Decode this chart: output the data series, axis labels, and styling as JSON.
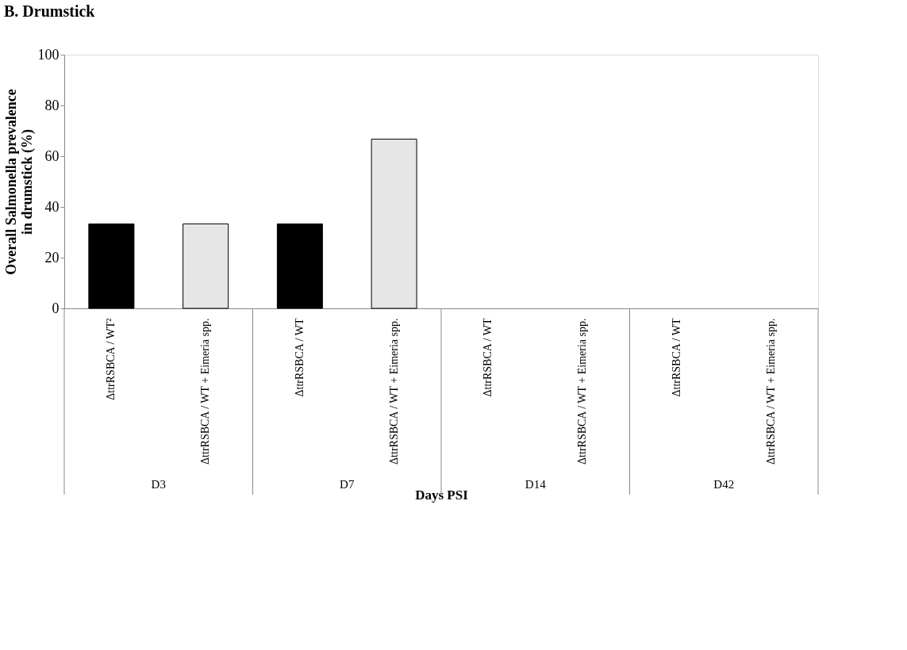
{
  "chart_data": {
    "type": "bar",
    "title": "B. Drumstick",
    "xlabel": "Days PSI",
    "ylabel": "Overall Salmonella prevalence in drumstick (%)",
    "categories": [
      "ΔttrRSBCA / WT²",
      "ΔttrRSBCA / WT + Eimeria spp.",
      "ΔttrRSBCA / WT",
      "ΔttrRSBCA / WT + Eimeria spp.",
      "ΔttrRSBCA / WT",
      "ΔttrRSBCA / WT + Eimeria spp.",
      "ΔttrRSBCA / WT",
      "ΔttrRSBCA / WT + Eimeria spp."
    ],
    "values": [
      33.3,
      33.3,
      33.3,
      66.7,
      0,
      0,
      0,
      0
    ],
    "colors": [
      "#000000",
      "#e6e6e6",
      "#000000",
      "#e6e6e6",
      "#000000",
      "#e6e6e6",
      "#000000",
      "#e6e6e6"
    ],
    "ylim": [
      0,
      100
    ],
    "yticks": [
      0,
      20,
      40,
      60,
      80,
      100
    ],
    "grid": false,
    "annotations": [
      "D3",
      "D7",
      "D14",
      "D42"
    ]
  }
}
